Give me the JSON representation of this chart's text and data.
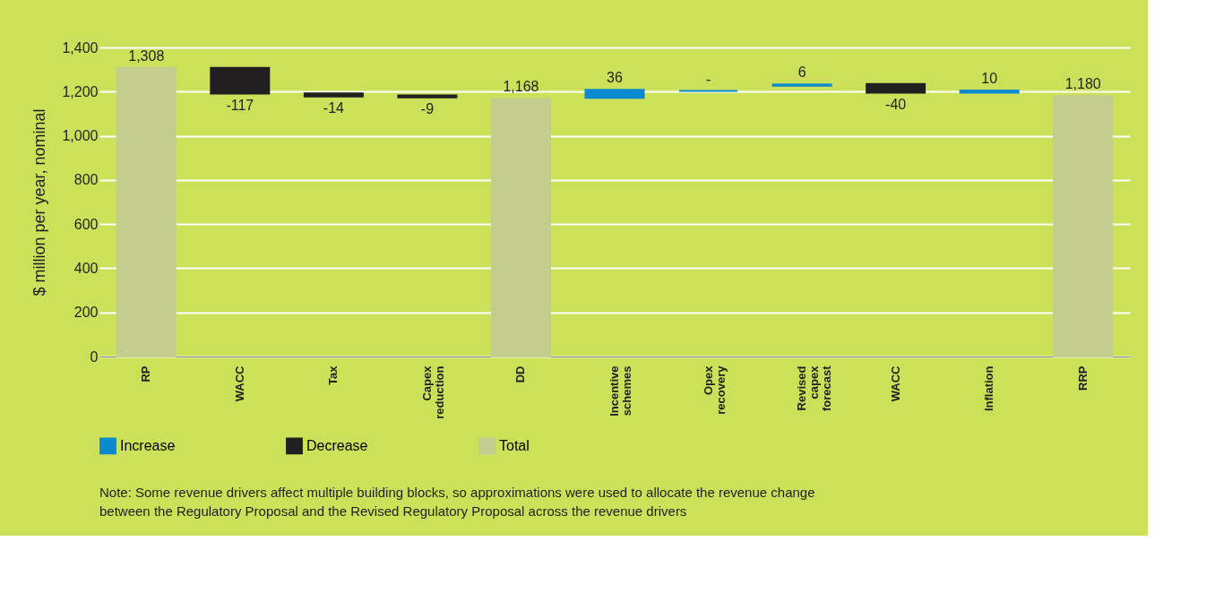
{
  "chart_data": {
    "type": "bar",
    "ylabel": "$ million per year, nominal",
    "categories": [
      "RP",
      "WACC",
      "Tax",
      "Capex reduction",
      "DD",
      "Incentive schemes",
      "Opex recovery",
      "Revised capex forecast",
      "WACC",
      "Inflation",
      "RRP"
    ],
    "series": [
      {
        "name": "Increase",
        "color": "#0a8bd0",
        "base": [
          null,
          null,
          null,
          null,
          null,
          1172,
          1203,
          1227,
          null,
          1195,
          null
        ],
        "values": [
          null,
          null,
          null,
          null,
          null,
          36,
          0,
          6,
          null,
          10,
          null
        ],
        "value_labels": [
          null,
          null,
          null,
          null,
          null,
          "36",
          "-",
          "6",
          null,
          "10",
          null
        ]
      },
      {
        "name": "Decrease",
        "color": "#231f20",
        "base": [
          null,
          1308,
          1192,
          1183,
          null,
          null,
          null,
          null,
          1235,
          null,
          null
        ],
        "values": [
          null,
          -117,
          -14,
          -9,
          null,
          null,
          null,
          null,
          -40,
          null,
          null
        ],
        "value_labels": [
          null,
          "-117",
          "-14",
          "-9",
          null,
          null,
          null,
          null,
          "-40",
          null,
          null
        ]
      },
      {
        "name": "Total",
        "color": "#c5cc8e",
        "values": [
          1308,
          null,
          null,
          null,
          1168,
          null,
          null,
          null,
          null,
          null,
          1180
        ],
        "value_labels": [
          "1,308",
          null,
          null,
          null,
          "1,168",
          null,
          null,
          null,
          null,
          null,
          "1,180"
        ]
      }
    ],
    "ylim": [
      0,
      1400
    ],
    "yticks": [
      0,
      200,
      400,
      600,
      800,
      {
        "value": 1000,
        "label": "1,000"
      },
      {
        "value": 1200,
        "label": "1,200"
      },
      {
        "value": 1400,
        "label": "1,400"
      }
    ],
    "grid": "y",
    "legend": "bottom",
    "annotations": [
      "Note: Some revenue drivers affect multiple building blocks, so approximations were used to allocate the revenue change between the Regulatory Proposal and the Revised Regulatory Proposal across the revenue drivers"
    ]
  }
}
